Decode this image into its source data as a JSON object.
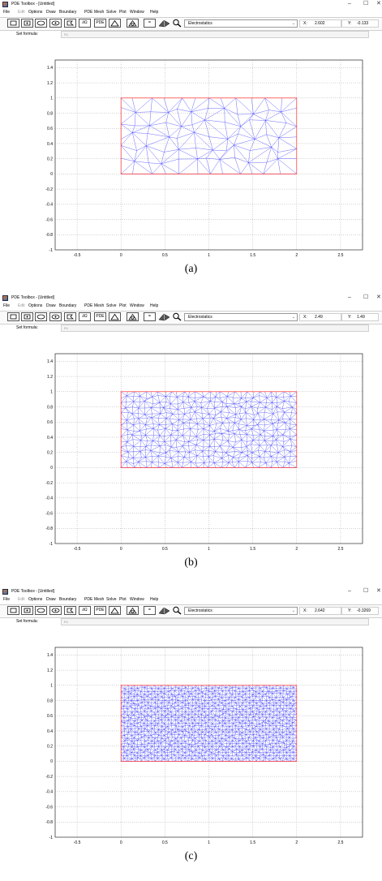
{
  "panels": [
    {
      "label": "(a)",
      "title": "PDE Toolbox - [Untitled]",
      "x_readout": "2.602",
      "y_readout": "-0.133",
      "mesh_density": 6
    },
    {
      "label": "(b)",
      "title": "PDE Toolbox - [Untitled]",
      "x_readout": "2.49",
      "y_readout": "1.49",
      "mesh_density": 14
    },
    {
      "label": "(c)",
      "title": "PDE Toolbox - [Untitled]",
      "x_readout": "2.642",
      "y_readout": "-0.3269",
      "mesh_density": 26
    }
  ],
  "menu": [
    "File",
    "Edit",
    "Options",
    "Draw",
    "Boundary",
    "PDE",
    "Mesh",
    "Solve",
    "Plot",
    "Window",
    "Help"
  ],
  "menu_disabled": [
    "Edit"
  ],
  "toolbar": {
    "pde_label": "PDE",
    "boundary_label": "∂Ω",
    "equals_label": "=",
    "app_mode": "Electrostatics",
    "x_label": "X:",
    "y_label": "Y:"
  },
  "formula": {
    "label": "Set formula:",
    "value": "R1"
  },
  "window_buttons": {
    "minimize": "–",
    "maximize": "☐",
    "close": "✕"
  },
  "axes": {
    "x_ticks": [
      "-0.5",
      "0",
      "0.5",
      "1",
      "1.5",
      "2",
      "2.5"
    ],
    "y_ticks": [
      "1.4",
      "1.2",
      "1",
      "0.8",
      "0.6",
      "0.4",
      "0.2",
      "0",
      "-0.2",
      "-0.4",
      "-0.6",
      "-0.8",
      "-1"
    ],
    "xlim": [
      -0.75,
      2.75
    ],
    "ylim": [
      -1,
      1.5
    ],
    "grid": true
  },
  "geometry": {
    "rectangle": {
      "x0": 0,
      "y0": 0,
      "x1": 2,
      "y1": 1
    }
  },
  "colors": {
    "mesh": "#2b2bff",
    "boundary": "#ff2b2b",
    "grid": "#8a8a8a"
  }
}
